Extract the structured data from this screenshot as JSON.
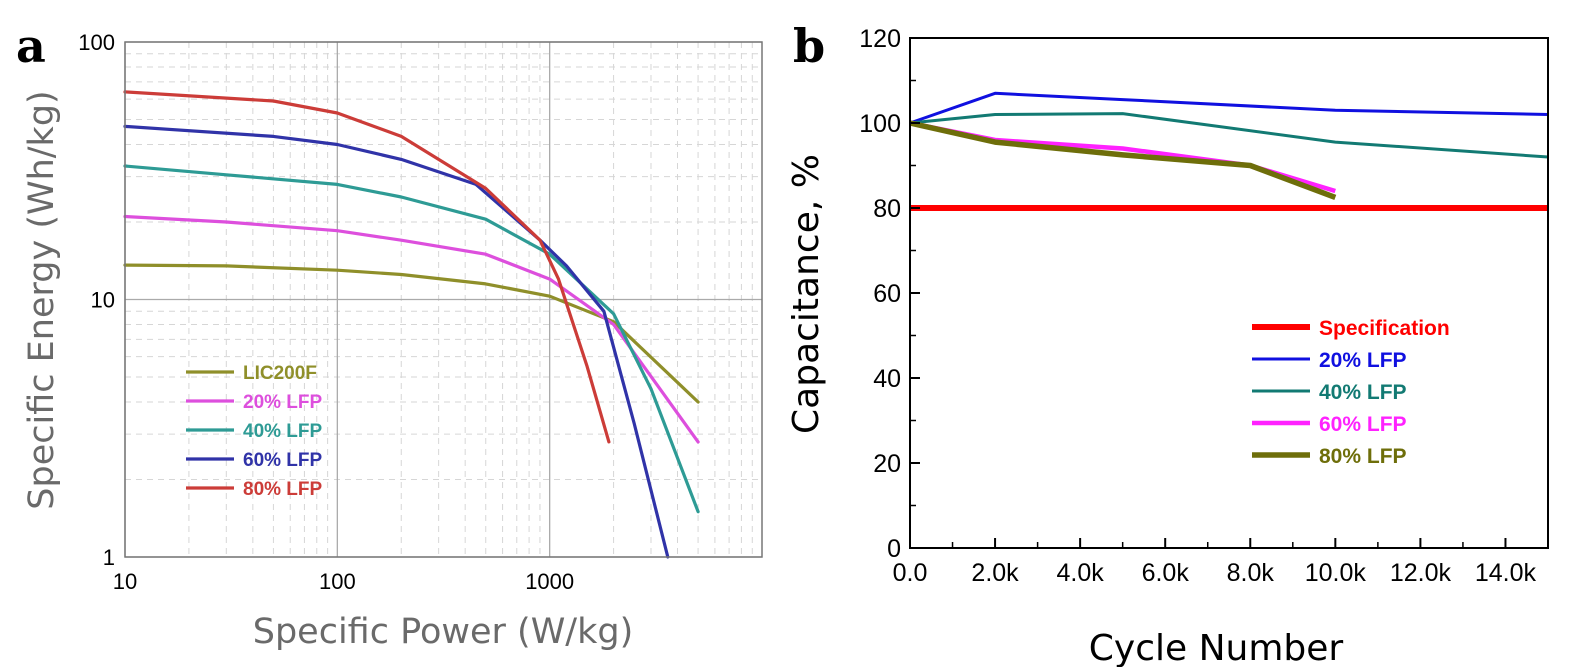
{
  "chart_data": [
    {
      "panel": "a",
      "type": "line",
      "title": "",
      "xlabel": "Specific Power (W/kg)",
      "ylabel": "Specific Energy (Wh/kg)",
      "xscale": "log",
      "yscale": "log",
      "xlim": [
        10,
        10000
      ],
      "ylim": [
        1,
        100
      ],
      "xticks": [
        10,
        100,
        1000
      ],
      "xtick_labels": [
        "10",
        "100",
        "1000"
      ],
      "yticks": [
        1,
        10,
        100
      ],
      "ytick_labels": [
        "1",
        "10",
        "100"
      ],
      "grid": true,
      "legend_position": "lower-left",
      "series": [
        {
          "name": "LIC200F",
          "color": "#8f8f2a",
          "points": [
            [
              10,
              13.6
            ],
            [
              30,
              13.5
            ],
            [
              100,
              13
            ],
            [
              200,
              12.5
            ],
            [
              500,
              11.5
            ],
            [
              1000,
              10.3
            ],
            [
              2000,
              8.2
            ],
            [
              5000,
              4
            ]
          ]
        },
        {
          "name": "20% LFP",
          "color": "#dd4fdd",
          "points": [
            [
              10,
              21
            ],
            [
              30,
              20
            ],
            [
              100,
              18.5
            ],
            [
              200,
              17
            ],
            [
              500,
              15
            ],
            [
              1000,
              12
            ],
            [
              2000,
              8
            ],
            [
              5000,
              2.8
            ]
          ]
        },
        {
          "name": "40% LFP",
          "color": "#2e9b95",
          "points": [
            [
              10,
              33
            ],
            [
              30,
              30.5
            ],
            [
              100,
              28
            ],
            [
              200,
              25
            ],
            [
              500,
              20.5
            ],
            [
              1000,
              15
            ],
            [
              2000,
              8.8
            ],
            [
              3000,
              4.5
            ],
            [
              5000,
              1.5
            ]
          ]
        },
        {
          "name": "60% LFP",
          "color": "#3033a8",
          "points": [
            [
              10,
              47
            ],
            [
              50,
              43
            ],
            [
              100,
              40
            ],
            [
              200,
              35
            ],
            [
              450,
              28
            ],
            [
              900,
              17
            ],
            [
              1200,
              13.5
            ],
            [
              1800,
              9
            ],
            [
              2500,
              3.3
            ],
            [
              3600,
              1
            ]
          ]
        },
        {
          "name": "80% LFP",
          "color": "#cc3c38",
          "points": [
            [
              10,
              64
            ],
            [
              50,
              59
            ],
            [
              100,
              53
            ],
            [
              200,
              43
            ],
            [
              500,
              27
            ],
            [
              900,
              17
            ],
            [
              1100,
              12
            ],
            [
              1500,
              5.5
            ],
            [
              1900,
              2.8
            ]
          ]
        }
      ]
    },
    {
      "panel": "b",
      "type": "line",
      "title": "",
      "xlabel": "Cycle Number",
      "ylabel": "Capacitance, %",
      "xlim": [
        0,
        15000
      ],
      "ylim": [
        0,
        120
      ],
      "xticks": [
        0,
        2000,
        4000,
        6000,
        8000,
        10000,
        12000,
        14000
      ],
      "xtick_labels": [
        "0.0",
        "2.0k",
        "4.0k",
        "6.0k",
        "8.0k",
        "10.0k",
        "12.0k",
        "14.0k"
      ],
      "yticks": [
        0,
        20,
        40,
        60,
        80,
        100,
        120
      ],
      "ytick_labels": [
        "0",
        "20",
        "40",
        "60",
        "80",
        "100",
        "120"
      ],
      "grid": false,
      "legend_position": "lower-right",
      "series": [
        {
          "name": "Specification",
          "color": "#ff0000",
          "points": [
            [
              0,
              80
            ],
            [
              15000,
              80
            ]
          ]
        },
        {
          "name": "20% LFP",
          "color": "#1010e0",
          "points": [
            [
              0,
              100
            ],
            [
              2000,
              107
            ],
            [
              5000,
              105.5
            ],
            [
              10000,
              103
            ],
            [
              15000,
              102
            ]
          ]
        },
        {
          "name": "40% LFP",
          "color": "#127a73",
          "points": [
            [
              0,
              100
            ],
            [
              2000,
              102
            ],
            [
              5000,
              102.2
            ],
            [
              10000,
              95.5
            ],
            [
              15000,
              92
            ]
          ]
        },
        {
          "name": "60% LFP",
          "color": "#ff22ff",
          "points": [
            [
              0,
              100
            ],
            [
              2000,
              96
            ],
            [
              5000,
              94
            ],
            [
              8000,
              90
            ],
            [
              10000,
              84
            ]
          ]
        },
        {
          "name": "80% LFP",
          "color": "#6e6e0a",
          "points": [
            [
              0,
              100
            ],
            [
              2000,
              95.5
            ],
            [
              5000,
              92.5
            ],
            [
              8000,
              90
            ],
            [
              10000,
              82.5
            ]
          ]
        }
      ]
    }
  ],
  "panels": {
    "a": {
      "label": "a"
    },
    "b": {
      "label": "b"
    }
  }
}
